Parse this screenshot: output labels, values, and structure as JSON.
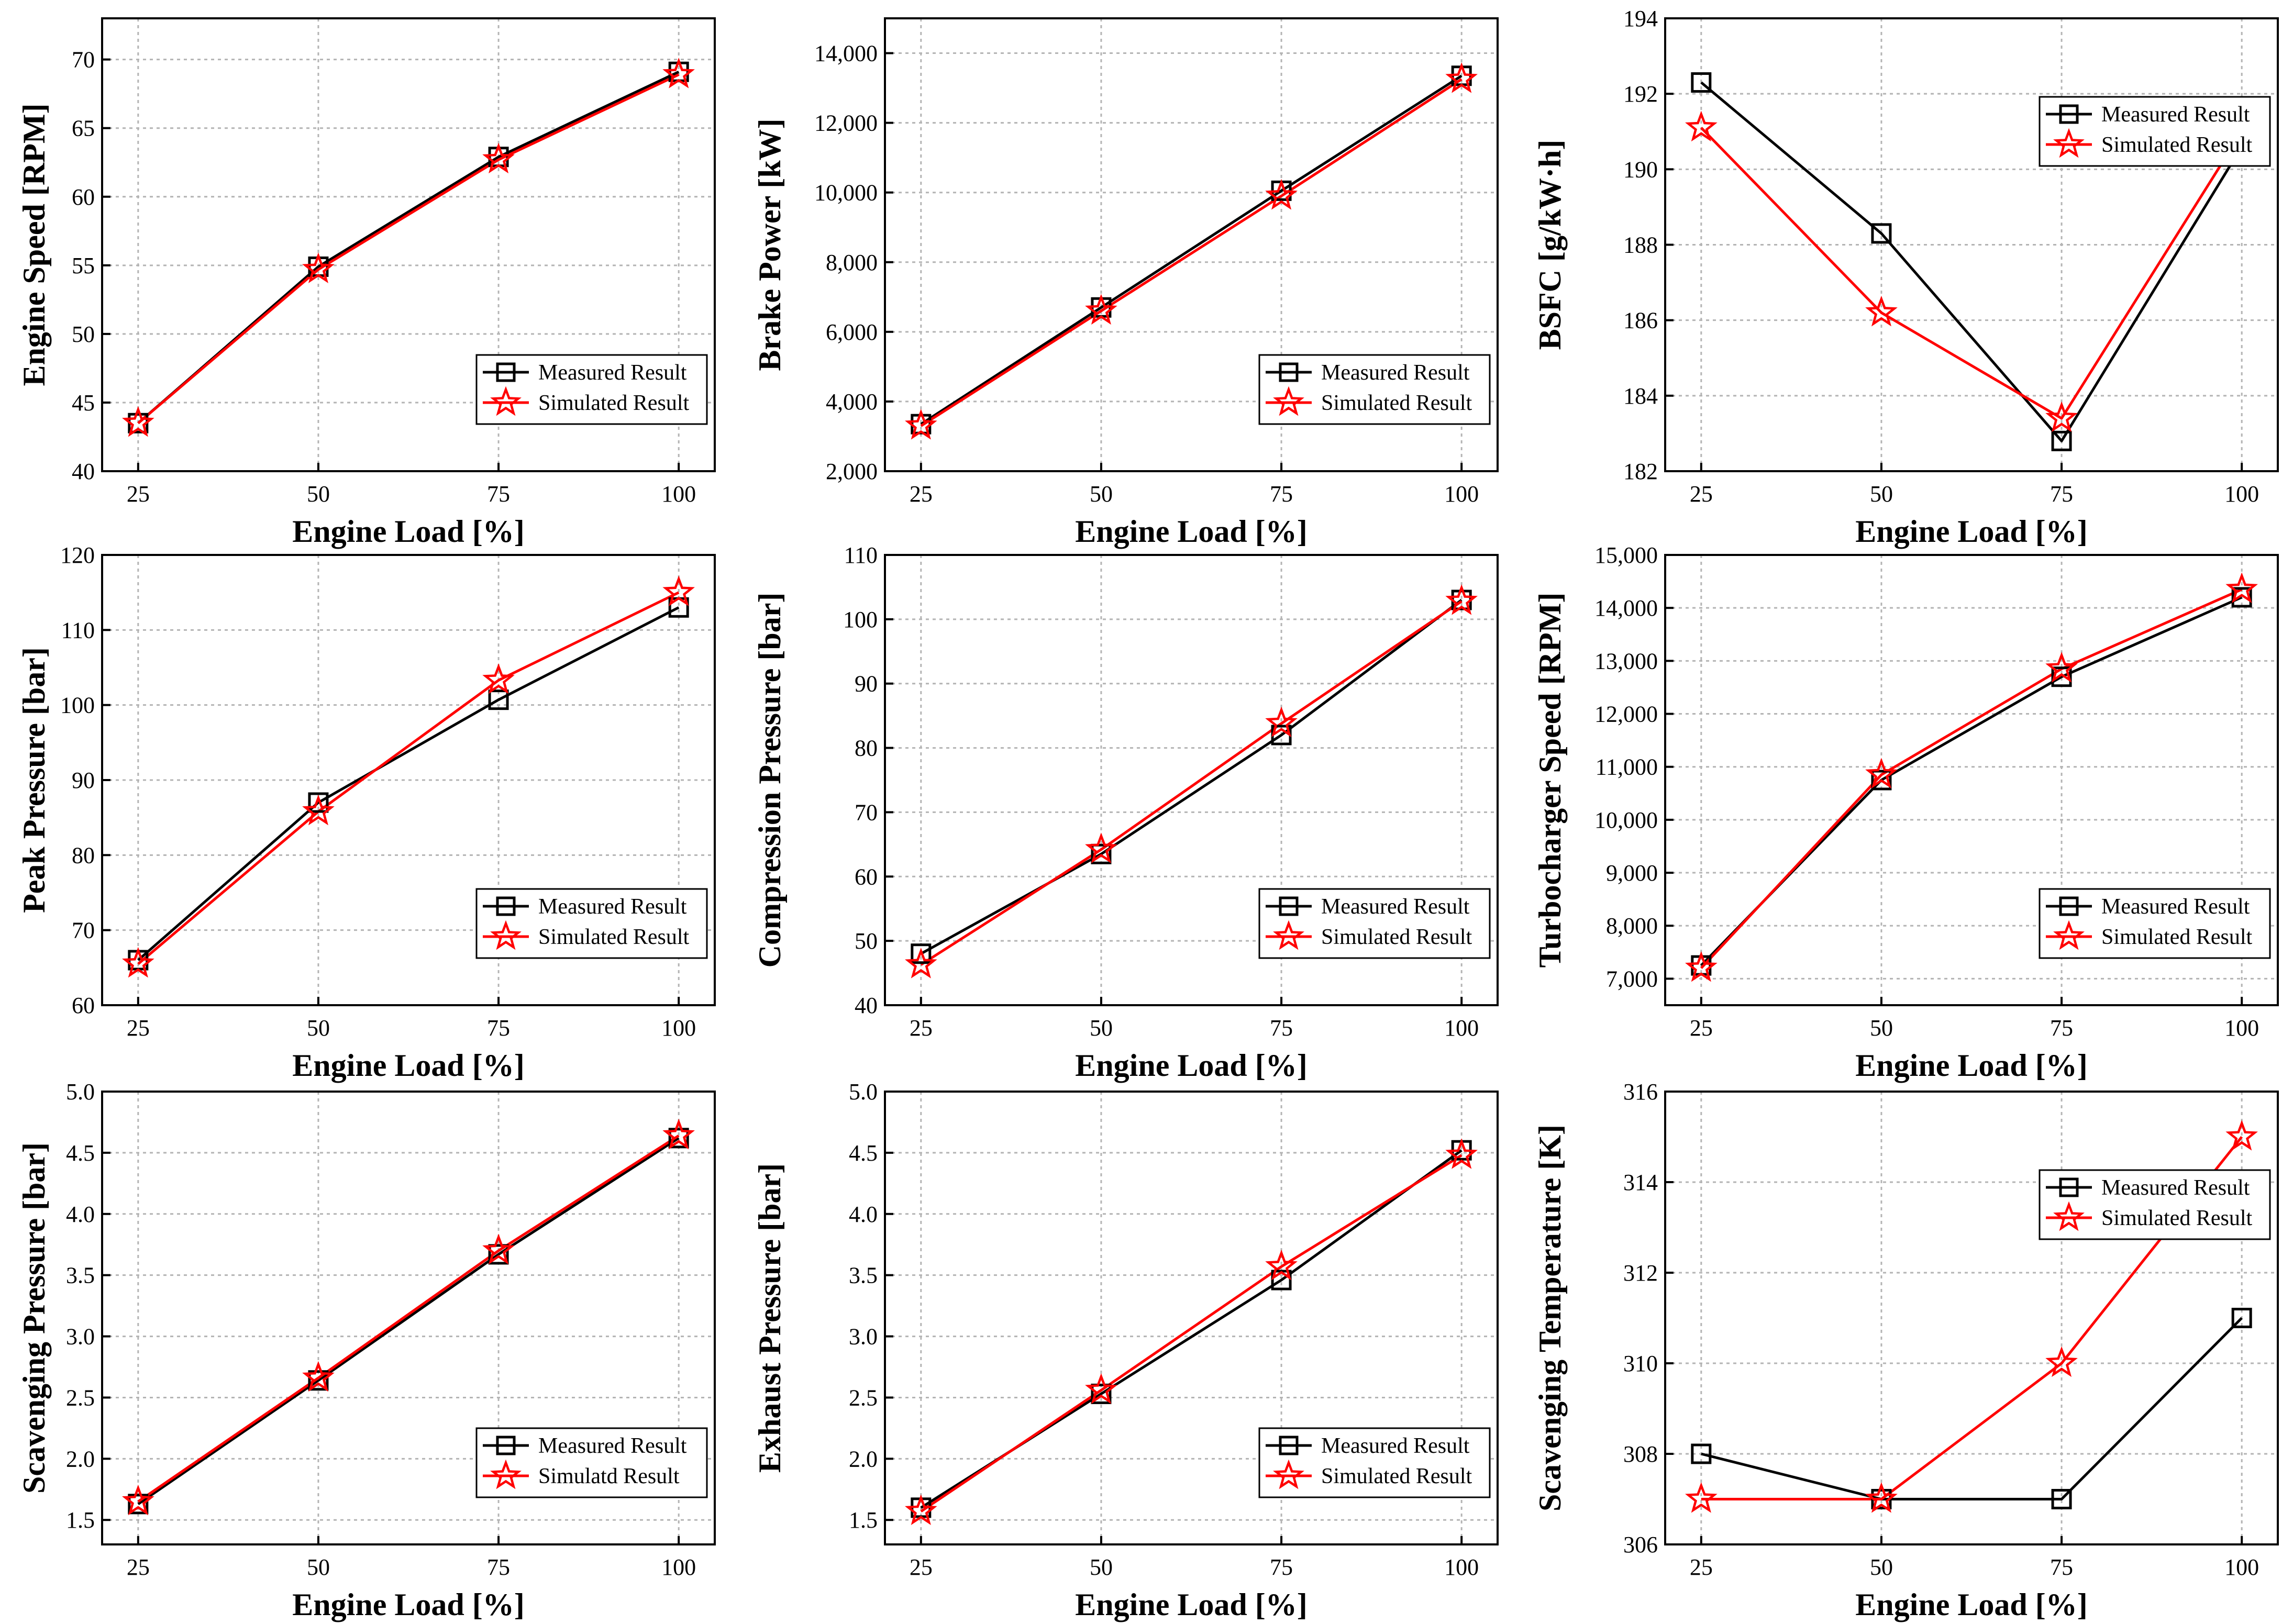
{
  "colors": {
    "measured": "#000000",
    "simulated": "#ff0000",
    "grid": "#b4b4b4"
  },
  "chart_data": [
    {
      "type": "line",
      "xlabel": "Engine Load [%]",
      "ylabel": "Engine Speed [RPM]",
      "x": [
        25,
        50,
        75,
        100
      ],
      "xticks": [
        25,
        50,
        75,
        100
      ],
      "xtick_labels": [
        "25",
        "50",
        "75",
        "100"
      ],
      "ylim": [
        40,
        73
      ],
      "yticks": [
        40,
        45,
        50,
        55,
        60,
        65,
        70
      ],
      "ytick_labels": [
        "40",
        "45",
        "50",
        "55",
        "60",
        "65",
        "70"
      ],
      "legend_position": "bottom-right",
      "series": [
        {
          "name": "Measured Result",
          "marker": "square",
          "values": [
            43.5,
            54.9,
            62.9,
            69.1
          ]
        },
        {
          "name": "Simulated Result",
          "marker": "star",
          "values": [
            43.5,
            54.7,
            62.7,
            68.9
          ]
        }
      ]
    },
    {
      "type": "line",
      "xlabel": "Engine Load [%]",
      "ylabel": "Brake Power [kW]",
      "x": [
        25,
        50,
        75,
        100
      ],
      "xticks": [
        25,
        50,
        75,
        100
      ],
      "xtick_labels": [
        "25",
        "50",
        "75",
        "100"
      ],
      "ylim": [
        2000,
        15000
      ],
      "yticks": [
        2000,
        4000,
        6000,
        8000,
        10000,
        12000,
        14000
      ],
      "ytick_labels": [
        "2,000",
        "4,000",
        "6,000",
        "8,000",
        "10,000",
        "12,000",
        "14,000"
      ],
      "legend_position": "bottom-right",
      "series": [
        {
          "name": "Measured Result",
          "marker": "square",
          "values": [
            3350,
            6700,
            10050,
            13350
          ]
        },
        {
          "name": "Simulated Result",
          "marker": "star",
          "values": [
            3300,
            6600,
            9900,
            13250
          ]
        }
      ]
    },
    {
      "type": "line",
      "xlabel": "Engine Load [%]",
      "ylabel": "BSFC [g/kW·h]",
      "x": [
        25,
        50,
        75,
        100
      ],
      "xticks": [
        25,
        50,
        75,
        100
      ],
      "xtick_labels": [
        "25",
        "50",
        "75",
        "100"
      ],
      "ylim": [
        182,
        194
      ],
      "yticks": [
        182,
        184,
        186,
        188,
        190,
        192,
        194
      ],
      "ytick_labels": [
        "182",
        "184",
        "186",
        "188",
        "190",
        "192",
        "194"
      ],
      "legend_position": "top-right",
      "series": [
        {
          "name": "Measured Result",
          "marker": "square",
          "values": [
            192.3,
            188.3,
            182.8,
            190.6
          ]
        },
        {
          "name": "Simulated Result",
          "marker": "star",
          "values": [
            191.1,
            186.2,
            183.4,
            191.0
          ]
        }
      ]
    },
    {
      "type": "line",
      "xlabel": "Engine Load [%]",
      "ylabel": "Peak Pressure [bar]",
      "x": [
        25,
        50,
        75,
        100
      ],
      "xticks": [
        25,
        50,
        75,
        100
      ],
      "xtick_labels": [
        "25",
        "50",
        "75",
        "100"
      ],
      "ylim": [
        60,
        120
      ],
      "yticks": [
        60,
        70,
        80,
        90,
        100,
        110,
        120
      ],
      "ytick_labels": [
        "60",
        "70",
        "80",
        "90",
        "100",
        "110",
        "120"
      ],
      "legend_position": "bottom-right",
      "series": [
        {
          "name": "Measured Result",
          "marker": "square",
          "values": [
            66,
            87,
            100.7,
            113
          ]
        },
        {
          "name": "Simulated Result",
          "marker": "star",
          "values": [
            65.5,
            85.8,
            103.3,
            115
          ]
        }
      ]
    },
    {
      "type": "line",
      "xlabel": "Engine Load [%]",
      "ylabel": "Compression Pressure [bar]",
      "x": [
        25,
        50,
        75,
        100
      ],
      "xticks": [
        25,
        50,
        75,
        100
      ],
      "xtick_labels": [
        "25",
        "50",
        "75",
        "100"
      ],
      "ylim": [
        40,
        110
      ],
      "yticks": [
        40,
        50,
        60,
        70,
        80,
        90,
        100,
        110
      ],
      "ytick_labels": [
        "40",
        "50",
        "60",
        "70",
        "80",
        "90",
        "100",
        "110"
      ],
      "legend_position": "bottom-right",
      "series": [
        {
          "name": "Measured Result",
          "marker": "square",
          "values": [
            48,
            63.5,
            82,
            103
          ]
        },
        {
          "name": "Simulated Result",
          "marker": "star",
          "values": [
            46.3,
            64.2,
            83.8,
            102.8
          ]
        }
      ]
    },
    {
      "type": "line",
      "xlabel": "Engine Load [%]",
      "ylabel": "Turbocharger Speed [RPM]",
      "x": [
        25,
        50,
        75,
        100
      ],
      "xticks": [
        25,
        50,
        75,
        100
      ],
      "xtick_labels": [
        "25",
        "50",
        "75",
        "100"
      ],
      "ylim": [
        6500,
        15000
      ],
      "yticks": [
        7000,
        8000,
        9000,
        10000,
        11000,
        12000,
        13000,
        14000,
        15000
      ],
      "ytick_labels": [
        "7,000",
        "8,000",
        "9,000",
        "10,000",
        "11,000",
        "12,000",
        "13,000",
        "14,000",
        "15,000"
      ],
      "legend_position": "bottom-right",
      "series": [
        {
          "name": "Measured Result",
          "marker": "square",
          "values": [
            7250,
            10750,
            12700,
            14200
          ]
        },
        {
          "name": "Simulated Result",
          "marker": "star",
          "values": [
            7200,
            10850,
            12850,
            14350
          ]
        }
      ]
    },
    {
      "type": "line",
      "xlabel": "Engine Load [%]",
      "ylabel": "Scavenging Pressure [bar]",
      "x": [
        25,
        50,
        75,
        100
      ],
      "xticks": [
        25,
        50,
        75,
        100
      ],
      "xtick_labels": [
        "25",
        "50",
        "75",
        "100"
      ],
      "ylim": [
        1.3,
        5.0
      ],
      "yticks": [
        1.5,
        2.0,
        2.5,
        3.0,
        3.5,
        4.0,
        4.5,
        5.0
      ],
      "ytick_labels": [
        "1.5",
        "2.0",
        "2.5",
        "3.0",
        "3.5",
        "4.0",
        "4.5",
        "5.0"
      ],
      "legend_position": "bottom-right",
      "series": [
        {
          "name": "Measured Result",
          "marker": "square",
          "values": [
            1.63,
            2.64,
            3.67,
            4.62
          ]
        },
        {
          "name": "Simulatd Result",
          "marker": "star",
          "values": [
            1.65,
            2.66,
            3.7,
            4.64
          ]
        }
      ]
    },
    {
      "type": "line",
      "xlabel": "Engine Load [%]",
      "ylabel": "Exhaust Pressure [bar]",
      "x": [
        25,
        50,
        75,
        100
      ],
      "xticks": [
        25,
        50,
        75,
        100
      ],
      "xtick_labels": [
        "25",
        "50",
        "75",
        "100"
      ],
      "ylim": [
        1.3,
        5.0
      ],
      "yticks": [
        1.5,
        2.0,
        2.5,
        3.0,
        3.5,
        4.0,
        4.5,
        5.0
      ],
      "ytick_labels": [
        "1.5",
        "2.0",
        "2.5",
        "3.0",
        "3.5",
        "4.0",
        "4.5",
        "5.0"
      ],
      "legend_position": "bottom-right",
      "series": [
        {
          "name": "Measured Result",
          "marker": "square",
          "values": [
            1.6,
            2.53,
            3.46,
            4.52
          ]
        },
        {
          "name": "Simulated Result",
          "marker": "star",
          "values": [
            1.57,
            2.56,
            3.57,
            4.48
          ]
        }
      ]
    },
    {
      "type": "line",
      "xlabel": "Engine Load [%]",
      "ylabel": "Scavenging Temperature [K]",
      "x": [
        25,
        50,
        75,
        100
      ],
      "xticks": [
        25,
        50,
        75,
        100
      ],
      "xtick_labels": [
        "25",
        "50",
        "75",
        "100"
      ],
      "ylim": [
        306,
        316
      ],
      "yticks": [
        306,
        308,
        310,
        312,
        314,
        316
      ],
      "ytick_labels": [
        "306",
        "308",
        "310",
        "312",
        "314",
        "316"
      ],
      "legend_position": "top-right",
      "series": [
        {
          "name": "Measured Result",
          "marker": "square",
          "values": [
            308,
            307,
            307,
            311
          ]
        },
        {
          "name": "Simulated Result",
          "marker": "star",
          "values": [
            307,
            307,
            310,
            315
          ]
        }
      ]
    }
  ]
}
